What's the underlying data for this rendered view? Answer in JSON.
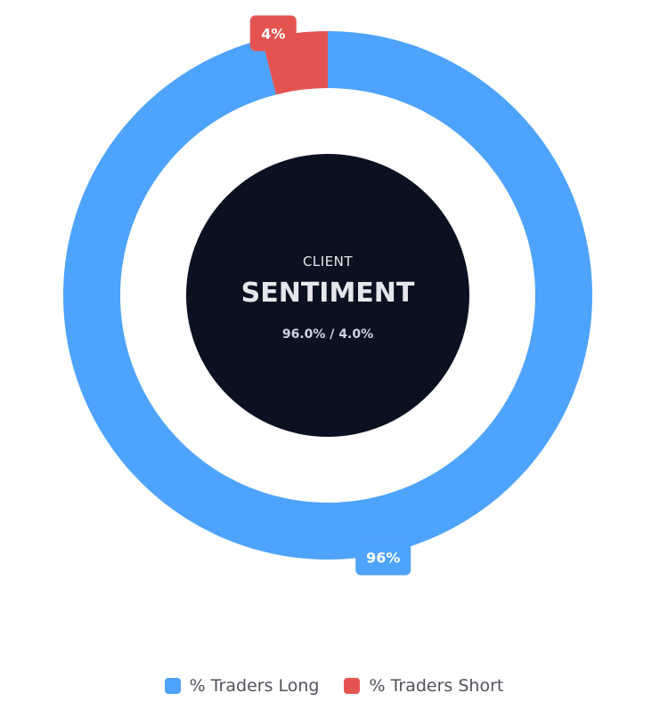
{
  "center": {
    "overline": "CLIENT",
    "title": "SENTIMENT",
    "subtitle": "96.0% / 4.0%"
  },
  "colors": {
    "long": "#4ea3fc",
    "short": "#e55351",
    "hole": "#0b1120",
    "center_text": "#e5e7eb",
    "center_sub": "#cbd5e1"
  },
  "chart_data": {
    "type": "pie",
    "variant": "doughnut",
    "series": [
      {
        "name": "% Traders Long",
        "value": 96.0,
        "label": "96%",
        "color": "#4ea3fc"
      },
      {
        "name": "% Traders Short",
        "value": 4.0,
        "label": "4%",
        "color": "#e55351"
      }
    ],
    "start_angle_deg": 270,
    "direction": "clockwise",
    "legend_position": "bottom"
  }
}
